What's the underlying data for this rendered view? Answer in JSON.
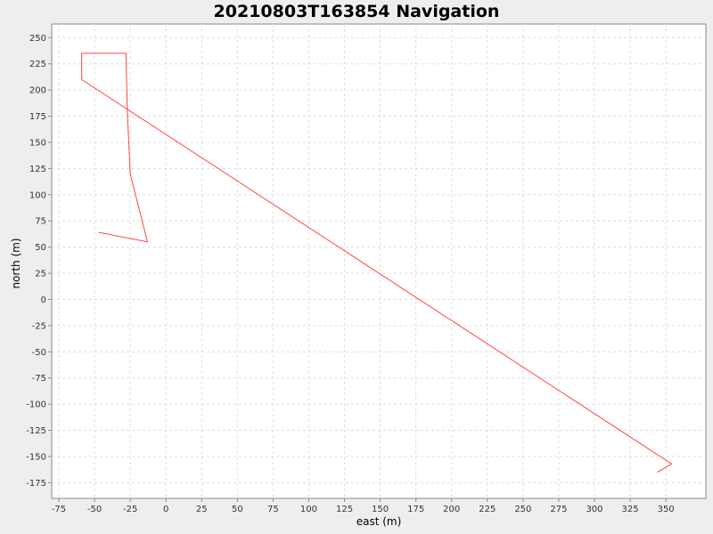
{
  "chart_data": {
    "type": "line",
    "title": "20210803T163854 Navigation",
    "xlabel": "east (m)",
    "ylabel": "north (m)",
    "xlim": [
      -80,
      378
    ],
    "ylim": [
      -190,
      263
    ],
    "xticks": [
      -75,
      -50,
      -25,
      0,
      25,
      50,
      75,
      100,
      125,
      150,
      175,
      200,
      225,
      250,
      275,
      300,
      325,
      350
    ],
    "yticks": [
      250,
      225,
      200,
      175,
      150,
      125,
      100,
      75,
      50,
      25,
      0,
      -25,
      -50,
      -75,
      -100,
      -125,
      -150,
      -175
    ],
    "grid": true,
    "series": [
      {
        "color": "#ff4444",
        "x": [
          -47,
          -13,
          -25,
          -27,
          -28,
          -59,
          -59,
          354,
          344
        ],
        "y": [
          64,
          55,
          120,
          180,
          235,
          235,
          210,
          -157,
          -165
        ]
      }
    ]
  }
}
